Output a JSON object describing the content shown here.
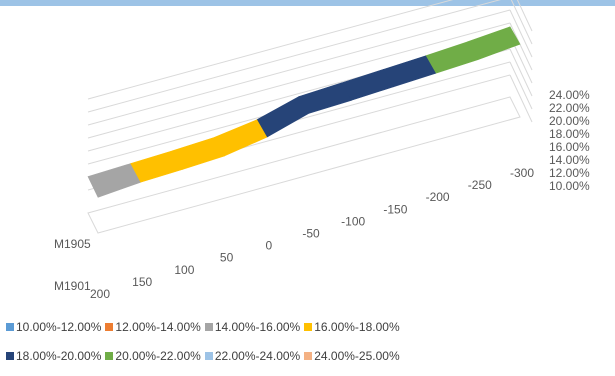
{
  "chart_data": {
    "type": "surface-3d",
    "z_axis": {
      "ticks": [
        "10.00%",
        "12.00%",
        "14.00%",
        "16.00%",
        "18.00%",
        "20.00%",
        "22.00%",
        "24.00%"
      ],
      "range": [
        0.1,
        0.24
      ]
    },
    "x_axis": {
      "ticks": [
        "200",
        "150",
        "100",
        "50",
        "0",
        "-50",
        "-100",
        "-150",
        "-200",
        "-250",
        "-300"
      ]
    },
    "y_axis": {
      "ticks": [
        "M1901",
        "M1905"
      ]
    },
    "surface": {
      "x": [
        200,
        150,
        100,
        50,
        0,
        -50,
        -100,
        -150,
        -200,
        -250,
        -300
      ],
      "series": [
        {
          "label": "M1901",
          "values": [
            0.155,
            0.16,
            0.162,
            0.165,
            0.176,
            0.195,
            0.197,
            0.2,
            0.203,
            0.206,
            0.212
          ]
        },
        {
          "label": "M1905",
          "values": [
            0.156,
            0.158,
            0.16,
            0.163,
            0.172,
            0.19,
            0.193,
            0.196,
            0.199,
            0.203,
            0.208
          ]
        }
      ]
    },
    "legend": {
      "position": "bottom",
      "items": [
        {
          "label": "10.00%-12.00%",
          "color": "#5b9bd5"
        },
        {
          "label": "12.00%-14.00%",
          "color": "#ed7d31"
        },
        {
          "label": "14.00%-16.00%",
          "color": "#a5a5a5"
        },
        {
          "label": "16.00%-18.00%",
          "color": "#ffc000"
        },
        {
          "label": "18.00%-20.00%",
          "color": "#264478"
        },
        {
          "label": "20.00%-22.00%",
          "color": "#70ad47"
        },
        {
          "label": "22.00%-24.00%",
          "color": "#9dc3e6"
        },
        {
          "label": "24.00%-25.00%",
          "color": "#f4b183"
        }
      ]
    }
  }
}
